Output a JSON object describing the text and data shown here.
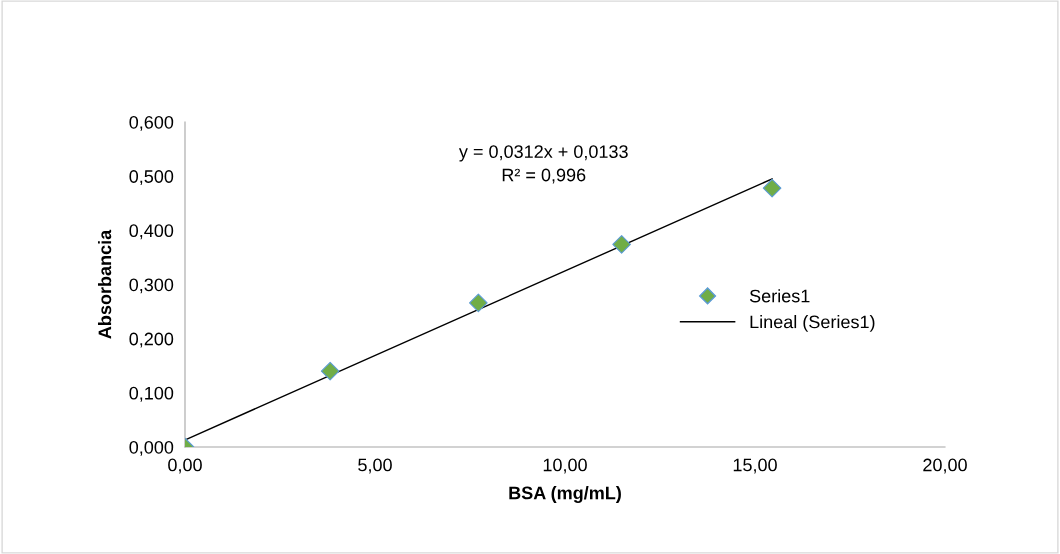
{
  "chart_data": {
    "type": "scatter",
    "xlabel": "BSA (mg/mL)",
    "ylabel": "Absorbancia",
    "xlim": [
      0,
      20
    ],
    "ylim": [
      0,
      0.6
    ],
    "xticks": [
      {
        "value": 0,
        "label": "0,00"
      },
      {
        "value": 5,
        "label": "5,00"
      },
      {
        "value": 10,
        "label": "10,00"
      },
      {
        "value": 15,
        "label": "15,00"
      },
      {
        "value": 20,
        "label": "20,00"
      }
    ],
    "yticks": [
      {
        "value": 0,
        "label": "0,000"
      },
      {
        "value": 0.1,
        "label": "0,100"
      },
      {
        "value": 0.2,
        "label": "0,200"
      },
      {
        "value": 0.3,
        "label": "0,300"
      },
      {
        "value": 0.4,
        "label": "0,400"
      },
      {
        "value": 0.5,
        "label": "0,500"
      },
      {
        "value": 0.6,
        "label": "0,600"
      }
    ],
    "series": [
      {
        "name": "Series1",
        "color": "#70ad47",
        "marker": "diamond",
        "x": [
          0,
          3.82,
          7.72,
          11.49,
          15.45
        ],
        "values": [
          0,
          0.14,
          0.266,
          0.374,
          0.478
        ]
      },
      {
        "name": "Lineal (Series1)",
        "type": "line",
        "color": "#000000",
        "marker": "none",
        "line_style": "solid",
        "x": [
          0,
          15.45
        ],
        "values": [
          0.013,
          0.495
        ]
      }
    ],
    "annotations": [
      "y = 0,0312x + 0,0133\nR² = 0,996"
    ],
    "grid": false,
    "legend": "right"
  }
}
